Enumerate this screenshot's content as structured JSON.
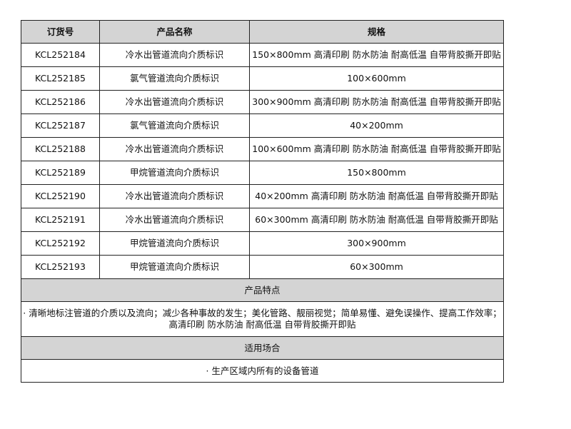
{
  "headers": [
    "订货号",
    "产品名称",
    "规格"
  ],
  "rows": [
    [
      "KCL252184",
      "冷水出管道流向介质标识",
      "150×800mm 高清印刷 防水防油 耐高低温 自带背胶撕开即贴"
    ],
    [
      "KCL252185",
      "氯气管道流向介质标识",
      "100×600mm"
    ],
    [
      "KCL252186",
      "冷水出管道流向介质标识",
      "300×900mm 高清印刷 防水防油 耐高低温 自带背胶撕开即贴"
    ],
    [
      "KCL252187",
      "氯气管道流向介质标识",
      "40×200mm"
    ],
    [
      "KCL252188",
      "冷水出管道流向介质标识",
      "100×600mm 高清印刷 防水防油 耐高低温 自带背胶撕开即贴"
    ],
    [
      "KCL252189",
      "甲烷管道流向介质标识",
      "150×800mm"
    ],
    [
      "KCL252190",
      "冷水出管道流向介质标识",
      "40×200mm 高清印刷 防水防油 耐高低温 自带背胶撕开即贴"
    ],
    [
      "KCL252191",
      "冷水出管道流向介质标识",
      "60×300mm 高清印刷 防水防油 耐高低温 自带背胶撕开即贴"
    ],
    [
      "KCL252192",
      "甲烷管道流向介质标识",
      "300×900mm"
    ],
    [
      "KCL252193",
      "甲烷管道流向介质标识",
      "60×300mm"
    ]
  ],
  "features": {
    "title": "产品特点",
    "text": "· 清晰地标注管道的介质以及流向；减少各种事故的发生；美化管路、靓丽视觉；简单易懂、避免误操作、提高工作效率；高清印刷 防水防油 耐高低温 自带背胶撕开即贴"
  },
  "usage": {
    "title": "适用场合",
    "text": "· 生产区域内所有的设备管道"
  }
}
